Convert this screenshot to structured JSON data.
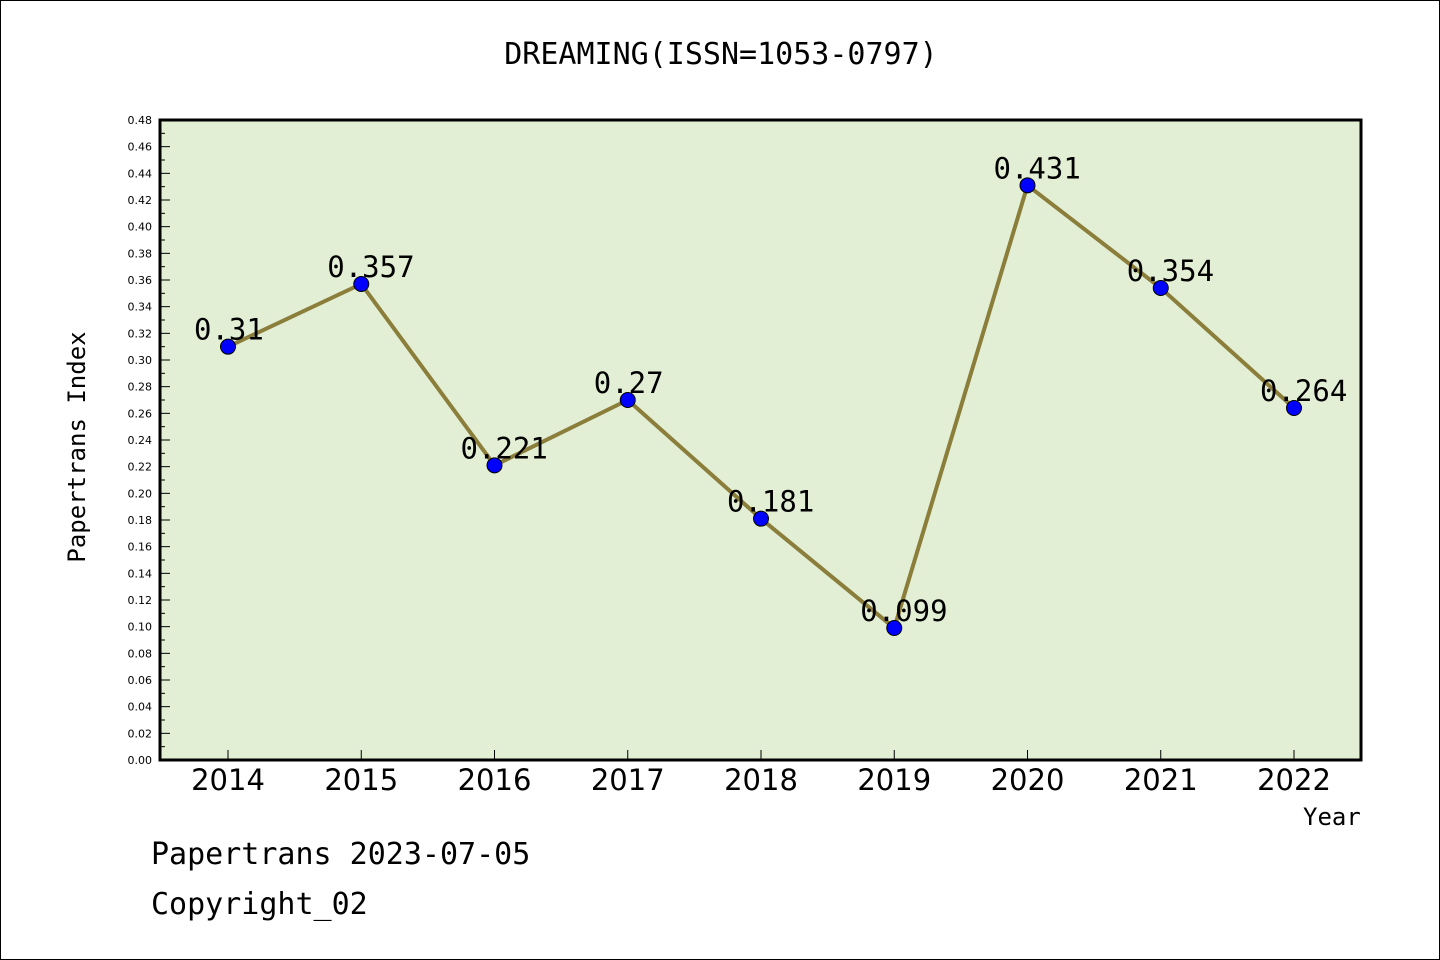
{
  "chart_data": {
    "type": "line",
    "title": "DREAMING(ISSN=1053-0797)",
    "xlabel": "Year",
    "ylabel": "Papertrans Index",
    "categories": [
      "2014",
      "2015",
      "2016",
      "2017",
      "2018",
      "2019",
      "2020",
      "2021",
      "2022"
    ],
    "series": [
      {
        "values": [
          0.31,
          0.357,
          0.221,
          0.27,
          0.181,
          0.099,
          0.431,
          0.354,
          0.264
        ],
        "data_labels": [
          "0.31",
          "0.357",
          "0.221",
          "0.27",
          "0.181",
          "0.099",
          "0.431",
          "0.354",
          "0.264"
        ]
      }
    ],
    "ylim": [
      0,
      0.48
    ],
    "yticks": [
      "0.00",
      "0.02",
      "0.04",
      "0.06",
      "0.08",
      "0.10",
      "0.12",
      "0.14",
      "0.16",
      "0.18",
      "0.20",
      "0.22",
      "0.24",
      "0.26",
      "0.28",
      "0.30",
      "0.32",
      "0.34",
      "0.36",
      "0.38",
      "0.40",
      "0.42",
      "0.44",
      "0.46",
      "0.48"
    ],
    "grid": false,
    "legend": "none",
    "colors": {
      "line": "#8b7d3a",
      "marker": "#0000ff",
      "plot_background": "#e2efd5",
      "frame": "#000000"
    }
  },
  "footer": {
    "line1": "Papertrans 2023-07-05",
    "line2": "Copyright_02"
  }
}
